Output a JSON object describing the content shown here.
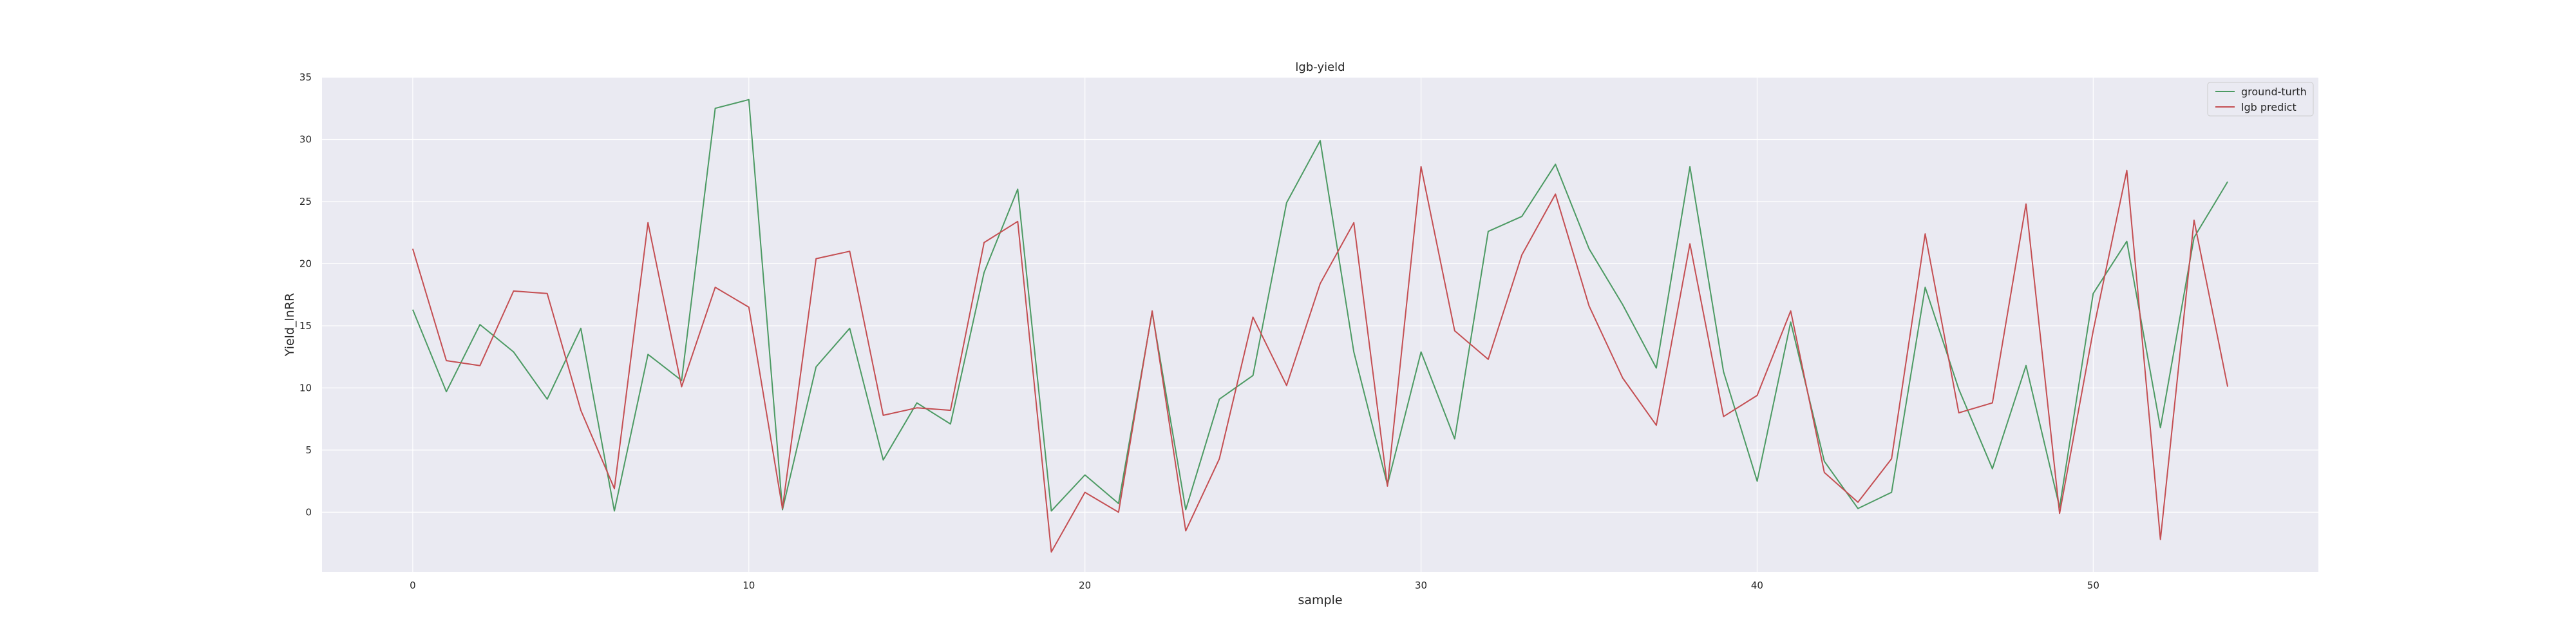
{
  "chart_data": {
    "type": "line",
    "title": "lgb-yield",
    "xlabel": "sample",
    "ylabel": "Yield_lnRR",
    "xlim": [
      -2.7,
      56.7
    ],
    "ylim": [
      -4.8,
      35
    ],
    "xticks": [
      0,
      10,
      20,
      30,
      40,
      50
    ],
    "yticks": [
      0,
      5,
      10,
      15,
      20,
      25,
      30,
      35
    ],
    "grid": true,
    "legend_position": "top-right",
    "background": "#eaeaf2",
    "x": [
      0,
      1,
      2,
      3,
      4,
      5,
      6,
      7,
      8,
      9,
      10,
      11,
      12,
      13,
      14,
      15,
      16,
      17,
      18,
      19,
      20,
      21,
      22,
      23,
      24,
      25,
      26,
      27,
      28,
      29,
      30,
      31,
      32,
      33,
      34,
      35,
      36,
      37,
      38,
      39,
      40,
      41,
      42,
      43,
      44,
      45,
      46,
      47,
      48,
      49,
      50,
      51,
      52,
      53,
      54
    ],
    "series": [
      {
        "name": "ground-turth",
        "color": "#4c9a63",
        "values": [
          16.3,
          9.7,
          15.1,
          12.9,
          9.1,
          14.8,
          0.1,
          12.7,
          10.6,
          32.5,
          33.2,
          0.2,
          11.7,
          14.8,
          4.2,
          8.8,
          7.1,
          19.3,
          26.0,
          0.1,
          3.0,
          0.7,
          16.1,
          0.2,
          9.1,
          11.0,
          24.9,
          29.9,
          12.9,
          2.2,
          12.9,
          5.9,
          22.6,
          23.8,
          28.0,
          21.2,
          16.7,
          11.6,
          27.8,
          11.3,
          2.5,
          15.3,
          4.1,
          0.3,
          1.6,
          18.1,
          9.9,
          3.5,
          11.8,
          0.4,
          17.6,
          21.8,
          6.8,
          22.1,
          26.6
        ]
      },
      {
        "name": "lgb predict",
        "color": "#c44e52",
        "values": [
          21.2,
          12.2,
          11.8,
          17.8,
          17.6,
          8.2,
          1.9,
          23.3,
          10.1,
          18.1,
          16.5,
          0.3,
          20.4,
          21.0,
          7.8,
          8.4,
          8.2,
          21.7,
          23.4,
          -3.2,
          1.6,
          0.0,
          16.2,
          -1.5,
          4.3,
          15.7,
          10.2,
          18.4,
          23.3,
          2.1,
          27.8,
          14.6,
          12.3,
          20.7,
          25.6,
          16.6,
          10.8,
          7.0,
          21.6,
          7.7,
          9.4,
          16.2,
          3.2,
          0.8,
          4.3,
          22.4,
          8.0,
          8.8,
          24.8,
          -0.1,
          14.6,
          27.5,
          -2.2,
          23.5,
          10.1
        ]
      }
    ]
  }
}
